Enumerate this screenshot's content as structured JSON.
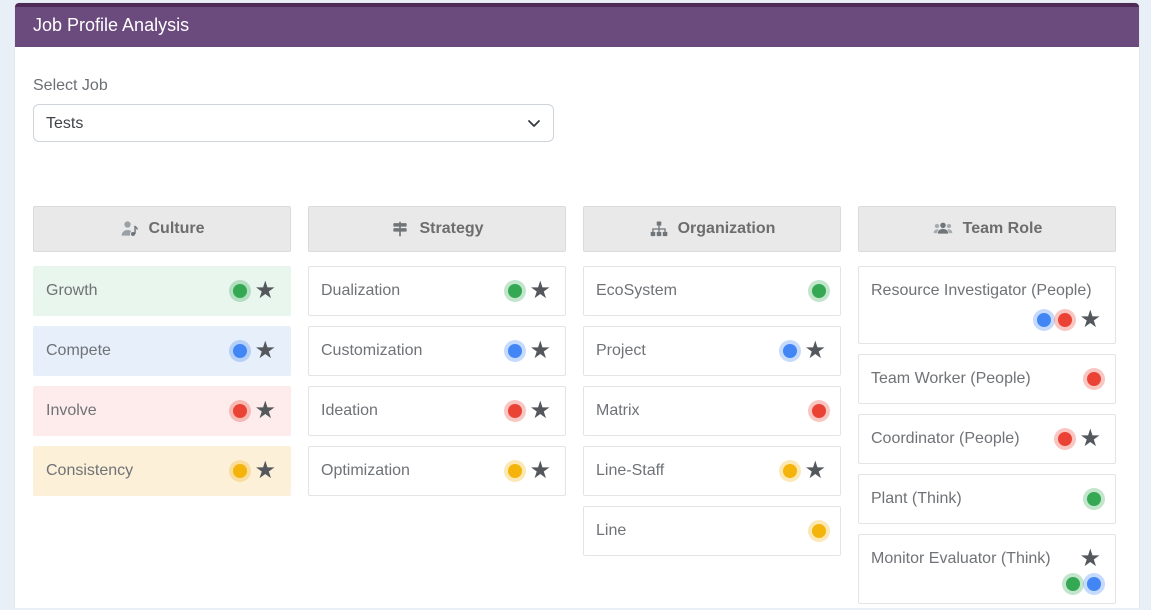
{
  "panel": {
    "title": "Job Profile Analysis",
    "header_bg": "#6b4a7e",
    "header_top_border": "#4e2a57"
  },
  "job_selector": {
    "label": "Select Job",
    "selected": "Tests"
  },
  "palette": {
    "green": "#34a853",
    "blue": "#4285f4",
    "red": "#ea4335",
    "yellow": "#f5b40b",
    "star": "#54585c"
  },
  "columns": [
    {
      "id": "culture",
      "title": "Culture",
      "icon": "user-music-icon",
      "items": [
        {
          "label": "Growth",
          "bg": "#e9f6ee",
          "icons": [
            {
              "type": "dot",
              "color": "green"
            },
            {
              "type": "star"
            }
          ]
        },
        {
          "label": "Compete",
          "bg": "#e6effa",
          "icons": [
            {
              "type": "dot",
              "color": "blue"
            },
            {
              "type": "star"
            }
          ]
        },
        {
          "label": "Involve",
          "bg": "#fdeceb",
          "icons": [
            {
              "type": "dot",
              "color": "red"
            },
            {
              "type": "star"
            }
          ]
        },
        {
          "label": "Consistency",
          "bg": "#fcf0d8",
          "icons": [
            {
              "type": "dot",
              "color": "yellow"
            },
            {
              "type": "star"
            }
          ]
        }
      ]
    },
    {
      "id": "strategy",
      "title": "Strategy",
      "icon": "map-signs-icon",
      "items": [
        {
          "label": "Dualization",
          "icons": [
            {
              "type": "dot",
              "color": "green"
            },
            {
              "type": "star"
            }
          ]
        },
        {
          "label": "Customization",
          "icons": [
            {
              "type": "dot",
              "color": "blue"
            },
            {
              "type": "star"
            }
          ]
        },
        {
          "label": "Ideation",
          "icons": [
            {
              "type": "dot",
              "color": "red"
            },
            {
              "type": "star"
            }
          ]
        },
        {
          "label": "Optimization",
          "icons": [
            {
              "type": "dot",
              "color": "yellow"
            },
            {
              "type": "star"
            }
          ]
        }
      ]
    },
    {
      "id": "organization",
      "title": "Organization",
      "icon": "sitemap-icon",
      "items": [
        {
          "label": "EcoSystem",
          "icons": [
            {
              "type": "dot",
              "color": "green"
            }
          ]
        },
        {
          "label": "Project",
          "icons": [
            {
              "type": "dot",
              "color": "blue"
            },
            {
              "type": "star"
            }
          ]
        },
        {
          "label": "Matrix",
          "icons": [
            {
              "type": "dot",
              "color": "red"
            }
          ]
        },
        {
          "label": "Line-Staff",
          "icons": [
            {
              "type": "dot",
              "color": "yellow"
            },
            {
              "type": "star"
            }
          ]
        },
        {
          "label": "Line",
          "icons": [
            {
              "type": "dot",
              "color": "yellow"
            }
          ]
        }
      ]
    },
    {
      "id": "team-role",
      "title": "Team Role",
      "icon": "users-icon",
      "items": [
        {
          "label": "Resource Investigator (People)",
          "icons": [],
          "icons2": [
            {
              "type": "dot",
              "color": "blue"
            },
            {
              "type": "dot",
              "color": "red"
            },
            {
              "type": "star"
            }
          ]
        },
        {
          "label": "Team Worker (People)",
          "icons": [
            {
              "type": "dot",
              "color": "red"
            }
          ]
        },
        {
          "label": "Coordinator (People)",
          "icons": [
            {
              "type": "dot",
              "color": "red"
            },
            {
              "type": "star"
            }
          ]
        },
        {
          "label": "Plant (Think)",
          "icons": [
            {
              "type": "dot",
              "color": "green"
            }
          ]
        },
        {
          "label": "Monitor Evaluator (Think)",
          "icons": [
            {
              "type": "star"
            }
          ],
          "icons2": [
            {
              "type": "dot",
              "color": "green"
            },
            {
              "type": "dot",
              "color": "blue"
            }
          ]
        }
      ]
    }
  ]
}
